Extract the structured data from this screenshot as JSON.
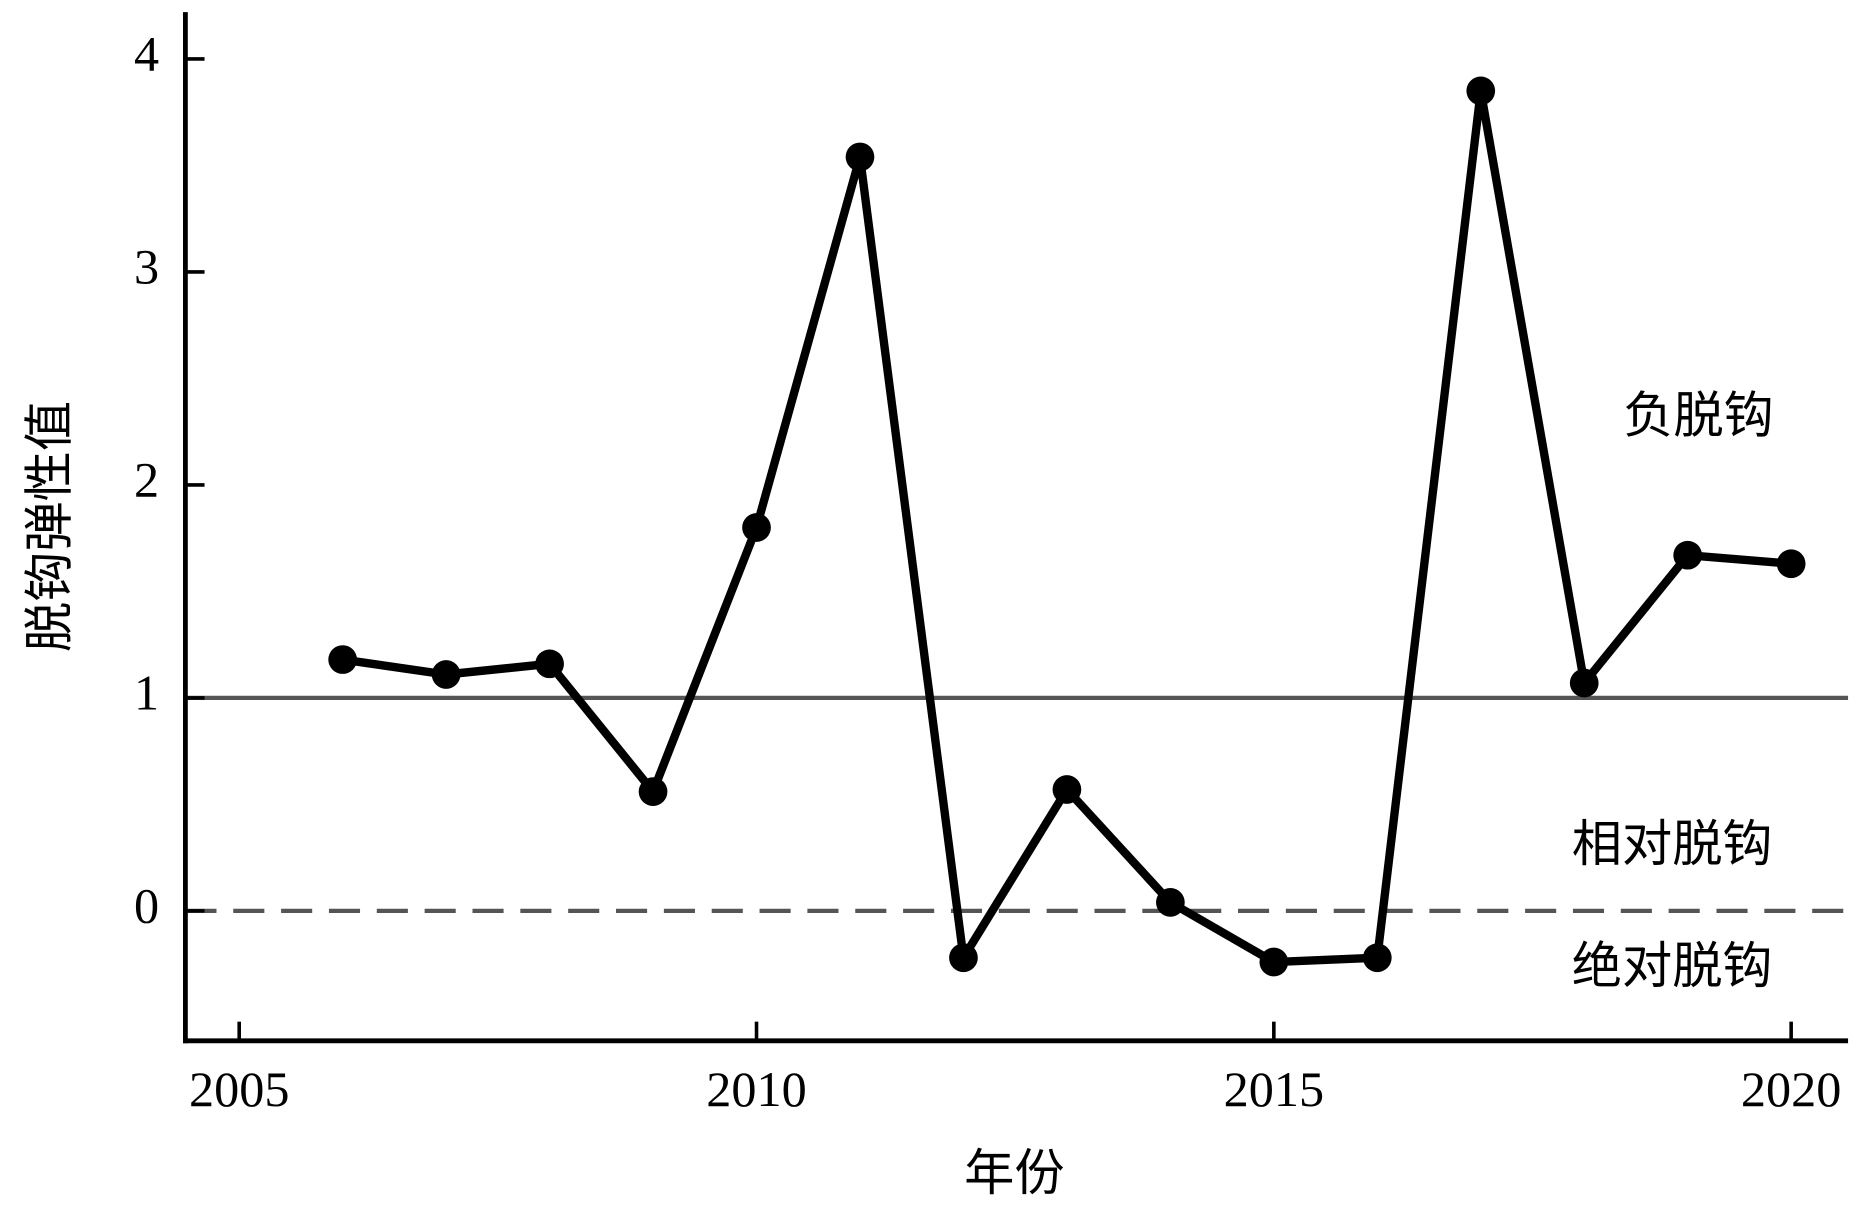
{
  "chart_data": {
    "type": "line",
    "x_label": "年份",
    "y_label": "脱钩弹性值",
    "x": [
      2006,
      2007,
      2008,
      2009,
      2010,
      2011,
      2012,
      2013,
      2014,
      2015,
      2016,
      2017,
      2018,
      2019,
      2020
    ],
    "series": [
      {
        "color": "#000000",
        "values": [
          1.18,
          1.11,
          1.16,
          0.56,
          1.8,
          3.54,
          -0.22,
          0.57,
          0.04,
          -0.24,
          -0.22,
          3.85,
          1.07,
          1.67,
          1.63
        ]
      }
    ],
    "xlim": [
      2004.48,
      2020.55
    ],
    "ylim": [
      -0.61,
      4.22
    ],
    "xticks": [
      2005,
      2010,
      2015,
      2020
    ],
    "yticks": [
      0,
      1,
      2,
      3,
      4
    ],
    "reference_lines": [
      {
        "value": 1,
        "style": "solid",
        "color": "#555555"
      },
      {
        "value": 0,
        "style": "dashed",
        "color": "#555555"
      }
    ],
    "annotations": [
      "负脱钩",
      "相对脱钩",
      "绝对脱钩"
    ],
    "grid": false
  }
}
